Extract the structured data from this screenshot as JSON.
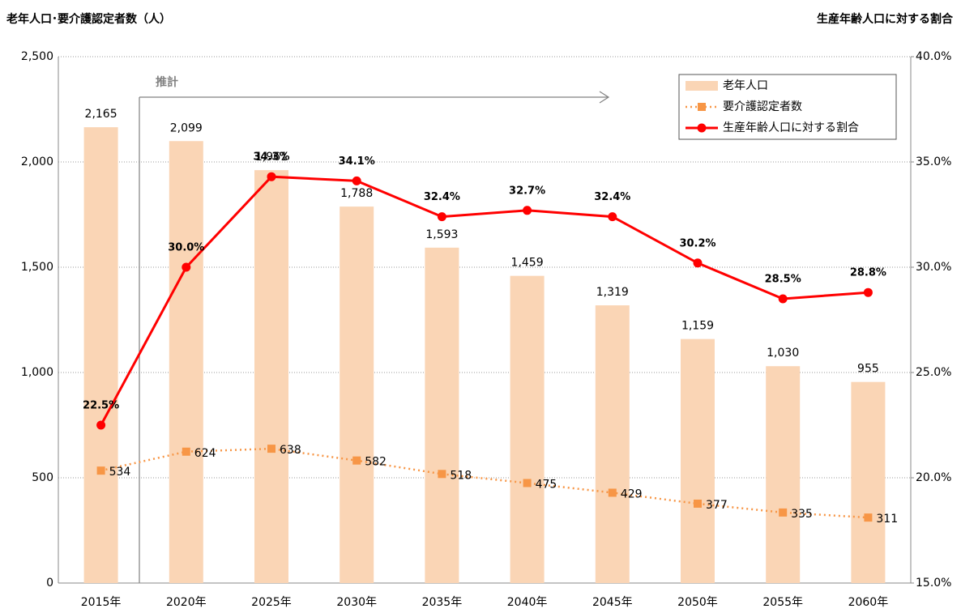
{
  "chart_data": {
    "type": "combo",
    "title": "老年人口･要介護認定者数（人）",
    "y2_title": "生産年齢人口に対する割合",
    "annotation": "推計",
    "categories": [
      "2015年",
      "2020年",
      "2025年",
      "2030年",
      "2035年",
      "2040年",
      "2045年",
      "2050年",
      "2055年",
      "2060年"
    ],
    "series": [
      {
        "name": "老年人口",
        "type": "bar",
        "color": "#fad5b5",
        "axis": "y",
        "values": [
          2165,
          2099,
          1961,
          1788,
          1593,
          1459,
          1319,
          1159,
          1030,
          955
        ],
        "value_labels": [
          "2,165",
          "2,099",
          "1,961",
          "1,788",
          "1,593",
          "1,459",
          "1,319",
          "1,159",
          "1,030",
          "955"
        ]
      },
      {
        "name": "要介護認定者数",
        "type": "line",
        "color": "#f79646",
        "axis": "y",
        "linestyle": "dotted",
        "marker": "square",
        "values": [
          534,
          624,
          638,
          582,
          518,
          475,
          429,
          377,
          335,
          311
        ]
      },
      {
        "name": "生産年齢人口に対する割合",
        "type": "line",
        "color": "#ff0000",
        "axis": "y2",
        "linestyle": "solid",
        "marker": "circle",
        "values": [
          22.5,
          30.0,
          34.3,
          34.1,
          32.4,
          32.7,
          32.4,
          30.2,
          28.5,
          28.8
        ],
        "value_labels": [
          "22.5%",
          "30.0%",
          "34.3%",
          "34.1%",
          "32.4%",
          "32.7%",
          "32.4%",
          "30.2%",
          "28.5%",
          "28.8%"
        ]
      }
    ],
    "ylim": [
      0,
      2500
    ],
    "yticks": [
      0,
      500,
      {
        "value": 1000,
        "label": "1,000"
      },
      {
        "value": 1500,
        "label": "1,500"
      },
      {
        "value": 2000,
        "label": "2,000"
      },
      {
        "value": 2500,
        "label": "2,500"
      }
    ],
    "y2lim": [
      15,
      40
    ],
    "y2ticks": [
      {
        "value": 15,
        "label": "15.0%"
      },
      {
        "value": 20,
        "label": "20.0%"
      },
      {
        "value": 25,
        "label": "25.0%"
      },
      {
        "value": 30,
        "label": "30.0%"
      },
      {
        "value": 35,
        "label": "35.0%"
      },
      {
        "value": 40,
        "label": "40.0%"
      }
    ],
    "grid": true,
    "legend": "upper right"
  }
}
